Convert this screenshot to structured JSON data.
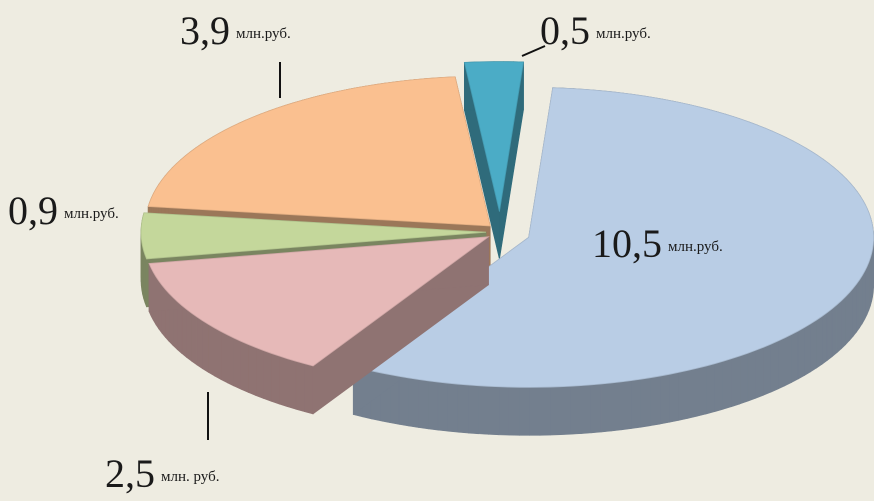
{
  "chart_data": {
    "type": "pie",
    "values": [
      10.5,
      2.5,
      0.9,
      3.9,
      0.5
    ],
    "value_labels": [
      "10,5",
      "2,5",
      "0,9",
      "3,9",
      "0,5"
    ],
    "units": [
      "млн.руб.",
      "млн. руб.",
      "млн.руб.",
      "млн.руб.",
      "млн.руб."
    ],
    "colors": [
      "#b9cde5",
      "#e6b9b8",
      "#c4d79b",
      "#fac090",
      "#4bacc6"
    ]
  }
}
